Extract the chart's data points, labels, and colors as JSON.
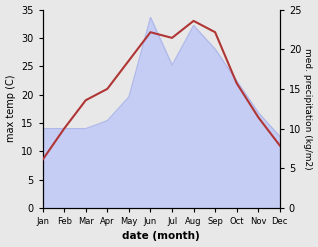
{
  "months": [
    "Jan",
    "Feb",
    "Mar",
    "Apr",
    "May",
    "Jun",
    "Jul",
    "Aug",
    "Sep",
    "Oct",
    "Nov",
    "Dec"
  ],
  "temp": [
    8.5,
    14.0,
    19.0,
    21.0,
    26.0,
    31.0,
    30.0,
    33.0,
    31.0,
    22.0,
    16.0,
    11.0
  ],
  "precip": [
    10.0,
    10.0,
    10.0,
    11.0,
    14.0,
    24.0,
    18.0,
    23.0,
    20.0,
    16.0,
    12.0,
    9.0
  ],
  "temp_color": "#b03535",
  "precip_fill_color": "#c5cdf5",
  "precip_line_color": "#b0b8e8",
  "temp_ylim": [
    0,
    35
  ],
  "precip_ylim": [
    0,
    25
  ],
  "xlabel": "date (month)",
  "ylabel_left": "max temp (C)",
  "ylabel_right": "med. precipitation (kg/m2)",
  "temp_yticks": [
    0,
    5,
    10,
    15,
    20,
    25,
    30,
    35
  ],
  "precip_yticks": [
    0,
    5,
    10,
    15,
    20,
    25
  ],
  "bg_color": "#e8e8e8",
  "fig_bg_color": "#e8e8e8"
}
